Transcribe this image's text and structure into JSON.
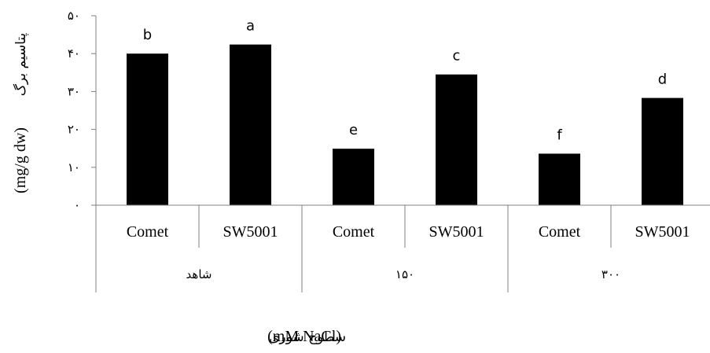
{
  "chart_data": {
    "type": "bar",
    "y_ticks": [
      "۰",
      "۱۰",
      "۲۰",
      "۳۰",
      "۴۰",
      "۵۰"
    ],
    "ylim": [
      0,
      50
    ],
    "categories": [
      "Comet",
      "SW5001",
      "Comet",
      "SW5001",
      "Comet",
      "SW5001"
    ],
    "groups": [
      "شاهد",
      "۱۵۰",
      "۳۰۰"
    ],
    "values": [
      40,
      42.4,
      14.9,
      34.5,
      13.6,
      28.3
    ],
    "letters": [
      "b",
      "a",
      "e",
      "c",
      "f",
      "d"
    ],
    "ylabel_fa": "پتاسیم برگ",
    "ylabel_unit": "(mg/g dw)",
    "xlabel_fa": "سطوح شوری",
    "xlabel_unit": "(mM NaCl)",
    "bar_color": "#000000",
    "grid": false
  }
}
